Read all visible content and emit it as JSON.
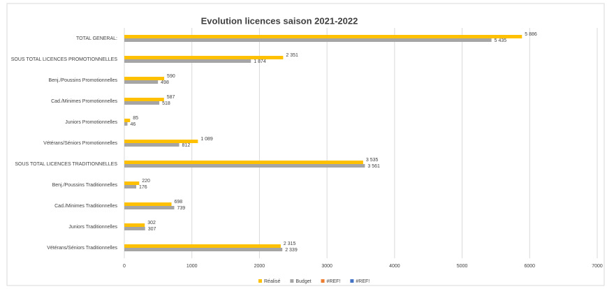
{
  "chart_data": {
    "type": "hbar",
    "title": "Evolution licences saison 2021-2022",
    "categories": [
      "TOTAL GENERAL:",
      "SOUS TOTAL LICENCES PROMOTIONNELLES",
      "Benj./Poussins Promotionnelles",
      "Cad./Minimes Promotionnelles",
      "Juniors Promotionnelles",
      "Vétérans/Séniors Promotionnelles",
      "SOUS TOTAL LICENCES TRADITIONNELLES",
      "Benj./Poussins Traditionnelles",
      "Cad./Minimes Traditionnelles",
      "Juniors Traditionnelles",
      "Vétérans/Séniors Traditionnelles"
    ],
    "series": [
      {
        "name": "Réalisé",
        "color": "#ffc000",
        "values": [
          5886,
          2351,
          590,
          587,
          85,
          1089,
          3535,
          220,
          698,
          302,
          2315
        ],
        "value_labels": [
          "5 886",
          "2 351",
          "590",
          "587",
          "85",
          "1 089",
          "3 535",
          "220",
          "698",
          "302",
          "2 315"
        ]
      },
      {
        "name": "Budget",
        "color": "#a5a5a5",
        "values": [
          5435,
          1874,
          498,
          518,
          46,
          812,
          3561,
          176,
          739,
          307,
          2339
        ],
        "value_labels": [
          "5 435",
          "1 874",
          "498",
          "518",
          "46",
          "812",
          "3 561",
          "176",
          "739",
          "307",
          "2 339"
        ]
      },
      {
        "name": "#REF!",
        "color": "#ed7d31",
        "values": [
          null,
          null,
          null,
          null,
          null,
          null,
          null,
          null,
          null,
          null,
          null
        ]
      },
      {
        "name": "#REF!",
        "color": "#4472c4",
        "values": [
          null,
          null,
          null,
          null,
          null,
          null,
          null,
          null,
          null,
          null,
          null
        ]
      }
    ],
    "xlim": [
      0,
      7000
    ],
    "xticks": [
      0,
      1000,
      2000,
      3000,
      4000,
      5000,
      6000,
      7000
    ],
    "grid": true,
    "legend": "bottom"
  }
}
